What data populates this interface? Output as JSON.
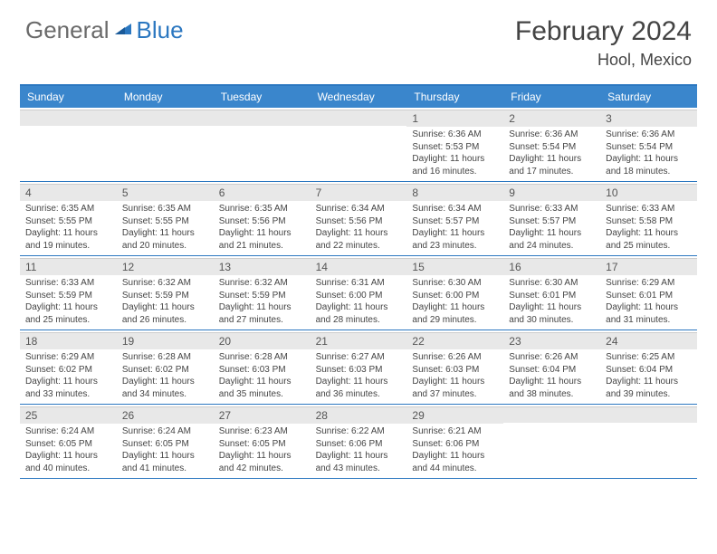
{
  "brand": {
    "part1": "General",
    "part2": "Blue"
  },
  "title": "February 2024",
  "location": "Hool, Mexico",
  "colors": {
    "header_bg": "#3a86cc",
    "header_border": "#2b77c0",
    "daynum_bg": "#e8e8e8",
    "text": "#444444",
    "brand_gray": "#6a6a6a",
    "brand_blue": "#2b77c0"
  },
  "day_names": [
    "Sunday",
    "Monday",
    "Tuesday",
    "Wednesday",
    "Thursday",
    "Friday",
    "Saturday"
  ],
  "weeks": [
    [
      {
        "blank": true
      },
      {
        "blank": true
      },
      {
        "blank": true
      },
      {
        "blank": true
      },
      {
        "num": "1",
        "sunrise": "Sunrise: 6:36 AM",
        "sunset": "Sunset: 5:53 PM",
        "daylight": "Daylight: 11 hours and 16 minutes."
      },
      {
        "num": "2",
        "sunrise": "Sunrise: 6:36 AM",
        "sunset": "Sunset: 5:54 PM",
        "daylight": "Daylight: 11 hours and 17 minutes."
      },
      {
        "num": "3",
        "sunrise": "Sunrise: 6:36 AM",
        "sunset": "Sunset: 5:54 PM",
        "daylight": "Daylight: 11 hours and 18 minutes."
      }
    ],
    [
      {
        "num": "4",
        "sunrise": "Sunrise: 6:35 AM",
        "sunset": "Sunset: 5:55 PM",
        "daylight": "Daylight: 11 hours and 19 minutes."
      },
      {
        "num": "5",
        "sunrise": "Sunrise: 6:35 AM",
        "sunset": "Sunset: 5:55 PM",
        "daylight": "Daylight: 11 hours and 20 minutes."
      },
      {
        "num": "6",
        "sunrise": "Sunrise: 6:35 AM",
        "sunset": "Sunset: 5:56 PM",
        "daylight": "Daylight: 11 hours and 21 minutes."
      },
      {
        "num": "7",
        "sunrise": "Sunrise: 6:34 AM",
        "sunset": "Sunset: 5:56 PM",
        "daylight": "Daylight: 11 hours and 22 minutes."
      },
      {
        "num": "8",
        "sunrise": "Sunrise: 6:34 AM",
        "sunset": "Sunset: 5:57 PM",
        "daylight": "Daylight: 11 hours and 23 minutes."
      },
      {
        "num": "9",
        "sunrise": "Sunrise: 6:33 AM",
        "sunset": "Sunset: 5:57 PM",
        "daylight": "Daylight: 11 hours and 24 minutes."
      },
      {
        "num": "10",
        "sunrise": "Sunrise: 6:33 AM",
        "sunset": "Sunset: 5:58 PM",
        "daylight": "Daylight: 11 hours and 25 minutes."
      }
    ],
    [
      {
        "num": "11",
        "sunrise": "Sunrise: 6:33 AM",
        "sunset": "Sunset: 5:59 PM",
        "daylight": "Daylight: 11 hours and 25 minutes."
      },
      {
        "num": "12",
        "sunrise": "Sunrise: 6:32 AM",
        "sunset": "Sunset: 5:59 PM",
        "daylight": "Daylight: 11 hours and 26 minutes."
      },
      {
        "num": "13",
        "sunrise": "Sunrise: 6:32 AM",
        "sunset": "Sunset: 5:59 PM",
        "daylight": "Daylight: 11 hours and 27 minutes."
      },
      {
        "num": "14",
        "sunrise": "Sunrise: 6:31 AM",
        "sunset": "Sunset: 6:00 PM",
        "daylight": "Daylight: 11 hours and 28 minutes."
      },
      {
        "num": "15",
        "sunrise": "Sunrise: 6:30 AM",
        "sunset": "Sunset: 6:00 PM",
        "daylight": "Daylight: 11 hours and 29 minutes."
      },
      {
        "num": "16",
        "sunrise": "Sunrise: 6:30 AM",
        "sunset": "Sunset: 6:01 PM",
        "daylight": "Daylight: 11 hours and 30 minutes."
      },
      {
        "num": "17",
        "sunrise": "Sunrise: 6:29 AM",
        "sunset": "Sunset: 6:01 PM",
        "daylight": "Daylight: 11 hours and 31 minutes."
      }
    ],
    [
      {
        "num": "18",
        "sunrise": "Sunrise: 6:29 AM",
        "sunset": "Sunset: 6:02 PM",
        "daylight": "Daylight: 11 hours and 33 minutes."
      },
      {
        "num": "19",
        "sunrise": "Sunrise: 6:28 AM",
        "sunset": "Sunset: 6:02 PM",
        "daylight": "Daylight: 11 hours and 34 minutes."
      },
      {
        "num": "20",
        "sunrise": "Sunrise: 6:28 AM",
        "sunset": "Sunset: 6:03 PM",
        "daylight": "Daylight: 11 hours and 35 minutes."
      },
      {
        "num": "21",
        "sunrise": "Sunrise: 6:27 AM",
        "sunset": "Sunset: 6:03 PM",
        "daylight": "Daylight: 11 hours and 36 minutes."
      },
      {
        "num": "22",
        "sunrise": "Sunrise: 6:26 AM",
        "sunset": "Sunset: 6:03 PM",
        "daylight": "Daylight: 11 hours and 37 minutes."
      },
      {
        "num": "23",
        "sunrise": "Sunrise: 6:26 AM",
        "sunset": "Sunset: 6:04 PM",
        "daylight": "Daylight: 11 hours and 38 minutes."
      },
      {
        "num": "24",
        "sunrise": "Sunrise: 6:25 AM",
        "sunset": "Sunset: 6:04 PM",
        "daylight": "Daylight: 11 hours and 39 minutes."
      }
    ],
    [
      {
        "num": "25",
        "sunrise": "Sunrise: 6:24 AM",
        "sunset": "Sunset: 6:05 PM",
        "daylight": "Daylight: 11 hours and 40 minutes."
      },
      {
        "num": "26",
        "sunrise": "Sunrise: 6:24 AM",
        "sunset": "Sunset: 6:05 PM",
        "daylight": "Daylight: 11 hours and 41 minutes."
      },
      {
        "num": "27",
        "sunrise": "Sunrise: 6:23 AM",
        "sunset": "Sunset: 6:05 PM",
        "daylight": "Daylight: 11 hours and 42 minutes."
      },
      {
        "num": "28",
        "sunrise": "Sunrise: 6:22 AM",
        "sunset": "Sunset: 6:06 PM",
        "daylight": "Daylight: 11 hours and 43 minutes."
      },
      {
        "num": "29",
        "sunrise": "Sunrise: 6:21 AM",
        "sunset": "Sunset: 6:06 PM",
        "daylight": "Daylight: 11 hours and 44 minutes."
      },
      {
        "blank": true
      },
      {
        "blank": true
      }
    ]
  ]
}
